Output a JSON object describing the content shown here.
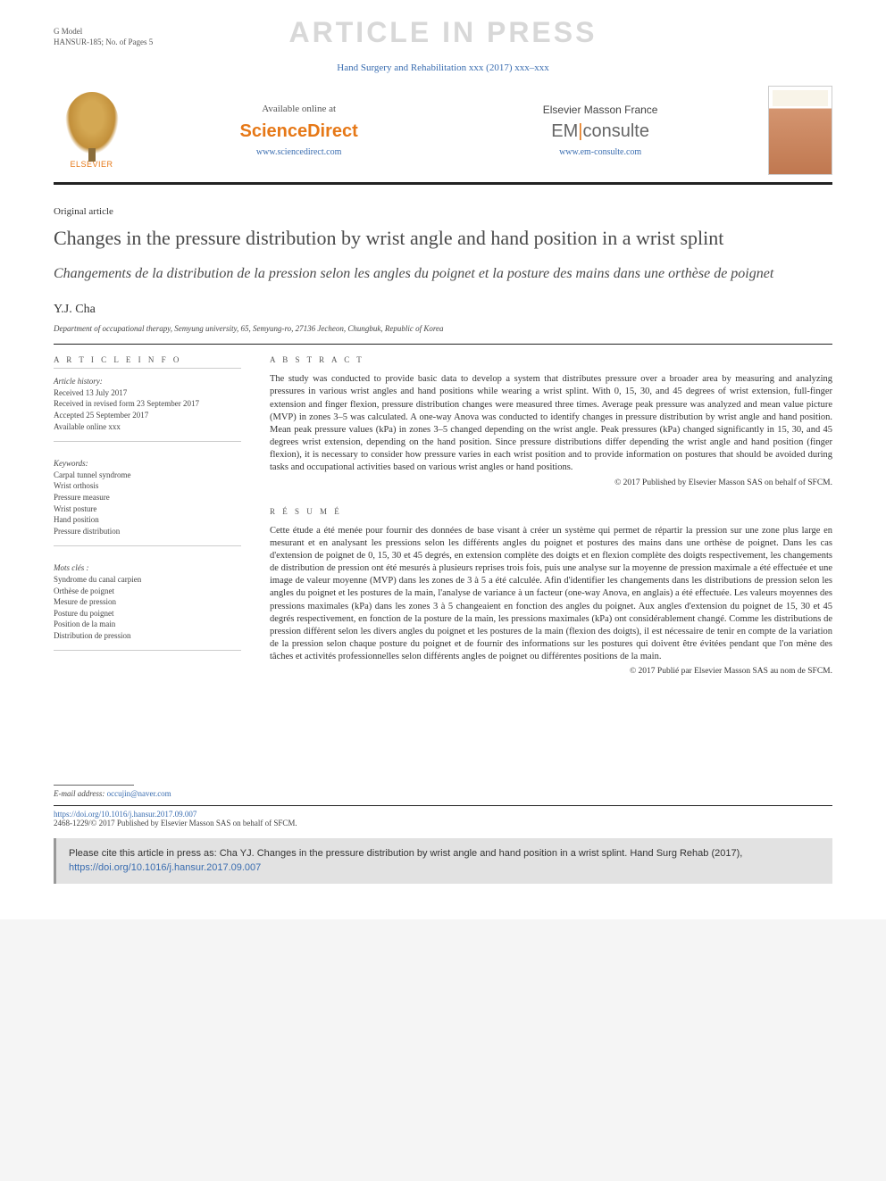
{
  "header": {
    "model_line1": "G Model",
    "model_line2": "HANSUR-185; No. of Pages 5",
    "watermark": "ARTICLE IN PRESS",
    "journal_ref": "Hand Surgery and Rehabilitation xxx (2017) xxx–xxx"
  },
  "banner": {
    "elsevier_label": "ELSEVIER",
    "sd_available": "Available online at",
    "sd_logo": "ScienceDirect",
    "sd_url": "www.sciencedirect.com",
    "em_title": "Elsevier Masson France",
    "em_logo_em": "EM",
    "em_logo_consulte": "consulte",
    "em_url": "www.em-consulte.com"
  },
  "article": {
    "type": "Original article",
    "title_en": "Changes in the pressure distribution by wrist angle and hand position in a wrist splint",
    "title_fr": "Changements de la distribution de la pression selon les angles du poignet et la posture des mains dans une orthèse de poignet",
    "author": "Y.J. Cha",
    "affiliation": "Department of occupational therapy, Semyung university, 65, Semyung-ro, 27136 Jecheon, Chungbuk, Republic of Korea"
  },
  "info": {
    "heading": "A R T I C L E   I N F O",
    "history_label": "Article history:",
    "received": "Received 13 July 2017",
    "revised": "Received in revised form 23 September 2017",
    "accepted": "Accepted 25 September 2017",
    "online": "Available online xxx",
    "keywords_label": "Keywords:",
    "keywords": [
      "Carpal tunnel syndrome",
      "Wrist orthosis",
      "Pressure measure",
      "Wrist posture",
      "Hand position",
      "Pressure distribution"
    ],
    "mots_label": "Mots clés :",
    "mots": [
      "Syndrome du canal carpien",
      "Orthèse de poignet",
      "Mesure de pression",
      "Posture du poignet",
      "Position de la main",
      "Distribution de pression"
    ]
  },
  "abstract": {
    "heading": "A B S T R A C T",
    "body": "The study was conducted to provide basic data to develop a system that distributes pressure over a broader area by measuring and analyzing pressures in various wrist angles and hand positions while wearing a wrist splint. With 0, 15, 30, and 45 degrees of wrist extension, full-finger extension and finger flexion, pressure distribution changes were measured three times. Average peak pressure was analyzed and mean value picture (MVP) in zones 3–5 was calculated. A one-way Anova was conducted to identify changes in pressure distribution by wrist angle and hand position. Mean peak pressure values (kPa) in zones 3–5 changed depending on the wrist angle. Peak pressures (kPa) changed significantly in 15, 30, and 45 degrees wrist extension, depending on the hand position. Since pressure distributions differ depending the wrist angle and hand position (finger flexion), it is necessary to consider how pressure varies in each wrist position and to provide information on postures that should be avoided during tasks and occupational activities based on various wrist angles or hand positions.",
    "copyright": "© 2017 Published by Elsevier Masson SAS on behalf of SFCM."
  },
  "resume": {
    "heading": "R É S U M É",
    "body": "Cette étude a été menée pour fournir des données de base visant à créer un système qui permet de répartir la pression sur une zone plus large en mesurant et en analysant les pressions selon les différents angles du poignet et postures des mains dans une orthèse de poignet. Dans les cas d'extension de poignet de 0, 15, 30 et 45 degrés, en extension complète des doigts et en flexion complète des doigts respectivement, les changements de distribution de pression ont été mesurés à plusieurs reprises trois fois, puis une analyse sur la moyenne de pression maximale a été effectuée et une image de valeur moyenne (MVP) dans les zones de 3 à 5 a été calculée. Afin d'identifier les changements dans les distributions de pression selon les angles du poignet et les postures de la main, l'analyse de variance à un facteur (one-way Anova, en anglais) a été effectuée. Les valeurs moyennes des pressions maximales (kPa) dans les zones 3 à 5 changeaient en fonction des angles du poignet. Aux angles d'extension du poignet de 15, 30 et 45 degrés respectivement, en fonction de la posture de la main, les pressions maximales (kPa) ont considérablement changé. Comme les distributions de pression diffèrent selon les divers angles du poignet et les postures de la main (flexion des doigts), il est nécessaire de tenir en compte de la variation de la pression selon chaque posture du poignet et de fournir des informations sur les postures qui doivent être évitées pendant que l'on mène des tâches et activités professionnelles selon différents angles de poignet ou différentes positions de la main.",
    "copyright": "© 2017 Publié par Elsevier Masson SAS au nom de SFCM."
  },
  "footer": {
    "email_label": "E-mail address:",
    "email": "occujin@naver.com",
    "doi": "https://doi.org/10.1016/j.hansur.2017.09.007",
    "issn_line": "2468-1229/© 2017 Published by Elsevier Masson SAS on behalf of SFCM.",
    "cite_text": "Please cite this article in press as: Cha YJ. Changes in the pressure distribution by wrist angle and hand position in a wrist splint. Hand Surg Rehab (2017), ",
    "cite_doi": "https://doi.org/10.1016/j.hansur.2017.09.007"
  }
}
